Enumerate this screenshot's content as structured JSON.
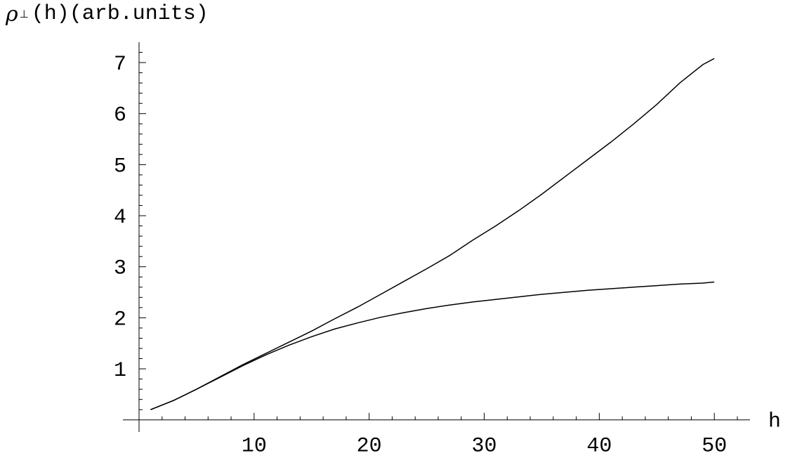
{
  "chart_data": {
    "type": "line",
    "title": "",
    "ylabel": {
      "symbol": "ρ",
      "subscript": "⊥",
      "text": "(h)(arb.units)"
    },
    "xlabel": "h",
    "xlim": [
      0,
      52
    ],
    "ylim": [
      -0.1,
      7.4
    ],
    "x_ticks": [
      10,
      20,
      30,
      40,
      50
    ],
    "y_ticks": [
      1,
      2,
      3,
      4,
      5,
      6,
      7
    ],
    "grid": false,
    "legend": "none",
    "line_color": "#000000",
    "series": [
      {
        "x": [
          1,
          3,
          5,
          7,
          9,
          11,
          13,
          15,
          17,
          19,
          21,
          23,
          25,
          27,
          29,
          31,
          33,
          35,
          37,
          39,
          41,
          43,
          45,
          47,
          49,
          50
        ],
        "values": [
          0.2,
          0.38,
          0.6,
          0.84,
          1.08,
          1.3,
          1.52,
          1.74,
          1.98,
          2.21,
          2.46,
          2.71,
          2.96,
          3.22,
          3.52,
          3.8,
          4.1,
          4.42,
          4.76,
          5.1,
          5.44,
          5.8,
          6.18,
          6.6,
          6.96,
          7.08
        ]
      },
      {
        "x": [
          1,
          3,
          5,
          7,
          9,
          11,
          13,
          15,
          17,
          19,
          21,
          23,
          25,
          27,
          29,
          31,
          33,
          35,
          37,
          39,
          41,
          43,
          45,
          47,
          49,
          50
        ],
        "values": [
          0.2,
          0.38,
          0.6,
          0.83,
          1.06,
          1.27,
          1.46,
          1.63,
          1.78,
          1.9,
          2.01,
          2.1,
          2.18,
          2.25,
          2.31,
          2.36,
          2.41,
          2.46,
          2.5,
          2.54,
          2.57,
          2.6,
          2.63,
          2.66,
          2.68,
          2.7
        ]
      }
    ]
  }
}
